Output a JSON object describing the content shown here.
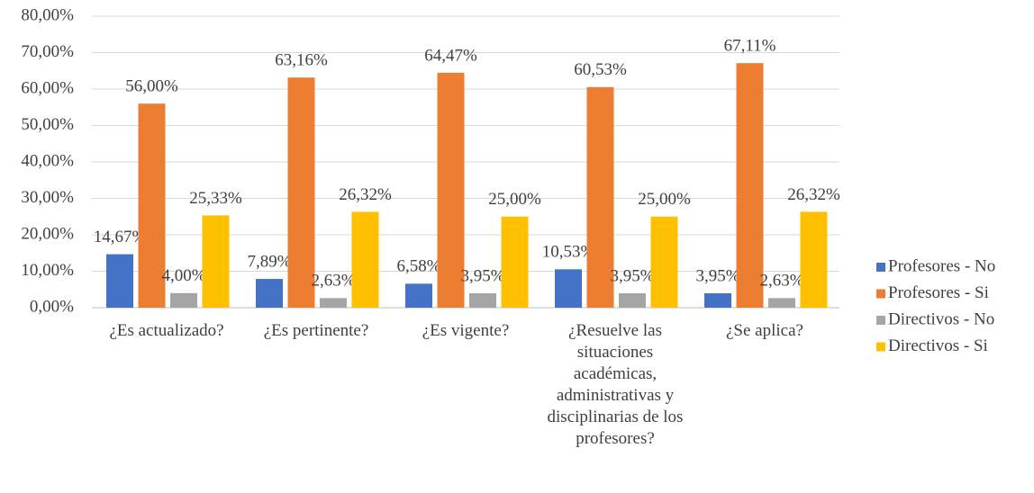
{
  "chart_data": {
    "type": "bar",
    "categories": [
      "¿Es actualizado?",
      "¿Es pertinente?",
      "¿Es vigente?",
      "¿Resuelve las situaciones académicas, administrativas y disciplinarias de los profesores?",
      "¿Se aplica?"
    ],
    "series": [
      {
        "name": "Profesores - No",
        "color": "#4472c4",
        "values": [
          14.67,
          7.89,
          6.58,
          10.53,
          3.95
        ],
        "value_labels": [
          "14,67%",
          "7,89%",
          "6,58%",
          "10,53%",
          "3,95%"
        ]
      },
      {
        "name": "Profesores - Si",
        "color": "#ed7d31",
        "values": [
          56,
          63.16,
          64.47,
          60.53,
          67.11
        ],
        "value_labels": [
          "56,00%",
          "63,16%",
          "64,47%",
          "60,53%",
          "67,11%"
        ]
      },
      {
        "name": "Directivos - No",
        "color": "#a5a5a5",
        "values": [
          4,
          2.63,
          3.95,
          3.95,
          2.63
        ],
        "value_labels": [
          "4,00%",
          "2,63%",
          "3,95%",
          "3,95%",
          "2,63%"
        ]
      },
      {
        "name": "Directivos - Si",
        "color": "#ffc000",
        "values": [
          25.33,
          26.32,
          25,
          25,
          26.32
        ],
        "value_labels": [
          "25,33%",
          "26,32%",
          "25,00%",
          "25,00%",
          "26,32%"
        ]
      }
    ],
    "ylim": [
      0,
      80
    ],
    "yticks": [
      {
        "value": 0,
        "label": "0,00%"
      },
      {
        "value": 10,
        "label": "10,00%"
      },
      {
        "value": 20,
        "label": "20,00%"
      },
      {
        "value": 30,
        "label": "30,00%"
      },
      {
        "value": 40,
        "label": "40,00%"
      },
      {
        "value": 50,
        "label": "50,00%"
      },
      {
        "value": 60,
        "label": "60,00%"
      },
      {
        "value": 70,
        "label": "70,00%"
      },
      {
        "value": 80,
        "label": "80,00%"
      }
    ],
    "grid": true,
    "legend": "right"
  }
}
